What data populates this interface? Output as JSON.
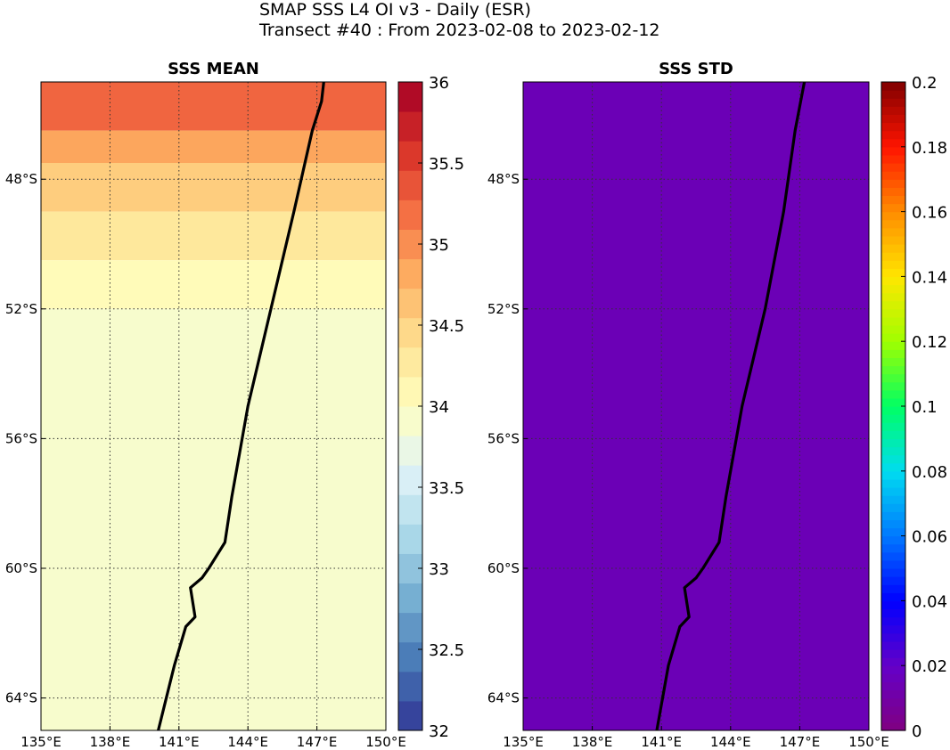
{
  "figure": {
    "title_line1": "SMAP SSS L4 OI v3 - Daily (ESR)",
    "title_line2": "Transect #40 : From 2023-02-08 to 2023-02-12"
  },
  "chart_data": [
    {
      "type": "heatmap",
      "title": "SSS MEAN",
      "xlim": [
        135,
        150
      ],
      "ylim": [
        -65.0,
        -45.0
      ],
      "x_ticks": [
        135,
        138,
        141,
        144,
        147,
        150
      ],
      "x_tick_labels": [
        "135°E",
        "138°E",
        "141°E",
        "144°E",
        "147°E",
        "150°E"
      ],
      "y_ticks": [
        -48,
        -52,
        -56,
        -60,
        -64
      ],
      "y_tick_labels": [
        "48°S",
        "52°S",
        "56°S",
        "60°S",
        "64°S"
      ],
      "grid": true,
      "colormap": "RdYlBu_r",
      "colorbar": {
        "range": [
          32,
          36
        ],
        "ticks": [
          32,
          32.5,
          33,
          33.5,
          34,
          34.5,
          35,
          35.5,
          36
        ],
        "tick_labels": [
          "32",
          "32.5",
          "33",
          "33.5",
          "34",
          "34.5",
          "35",
          "35.5",
          "36"
        ]
      },
      "salinity_zones": [
        {
          "lat_from": -45.0,
          "lat_to": -46.5,
          "value": 35.25
        },
        {
          "lat_from": -46.5,
          "lat_to": -47.5,
          "value": 34.85
        },
        {
          "lat_from": -47.5,
          "lat_to": -49.0,
          "value": 34.55
        },
        {
          "lat_from": -49.0,
          "lat_to": -50.5,
          "value": 34.3
        },
        {
          "lat_from": -50.5,
          "lat_to": -52.0,
          "value": 34.05
        },
        {
          "lat_from": -52.0,
          "lat_to": -65.0,
          "value": 33.9
        }
      ],
      "transect": {
        "lon": [
          140.1,
          140.8,
          141.3,
          141.7,
          141.5,
          142.0,
          142.3,
          143.0,
          143.3,
          144.0,
          145.0,
          146.0,
          146.8,
          147.2,
          147.3
        ],
        "lat": [
          -65.0,
          -63.0,
          -61.8,
          -61.5,
          -60.6,
          -60.3,
          -60.0,
          -59.2,
          -57.8,
          -55.0,
          -52.0,
          -49.0,
          -46.5,
          -45.6,
          -45.0
        ]
      }
    },
    {
      "type": "heatmap",
      "title": "SSS STD",
      "xlim": [
        135,
        150
      ],
      "ylim": [
        -65.0,
        -45.0
      ],
      "x_ticks": [
        135,
        138,
        141,
        144,
        147,
        150
      ],
      "x_tick_labels": [
        "135°E",
        "138°E",
        "141°E",
        "144°E",
        "147°E",
        "150°E"
      ],
      "y_ticks": [
        -48,
        -52,
        -56,
        -60,
        -64
      ],
      "y_tick_labels": [
        "48°S",
        "52°S",
        "56°S",
        "60°S",
        "64°S"
      ],
      "grid": true,
      "colormap": "jet",
      "colorbar": {
        "range": [
          0,
          0.2
        ],
        "ticks": [
          0,
          0.02,
          0.04,
          0.06,
          0.08,
          0.1,
          0.12,
          0.14,
          0.16,
          0.18,
          0.2
        ],
        "tick_labels": [
          "0",
          "0.02",
          "0.04",
          "0.06",
          "0.08",
          "0.1",
          "0.12",
          "0.14",
          "0.16",
          "0.18",
          "0.2"
        ]
      },
      "background_value": 0.015,
      "transect": {
        "lon": [
          140.8,
          141.3,
          141.8,
          142.2,
          142.0,
          142.5,
          142.8,
          143.5,
          143.8,
          144.5,
          145.5,
          146.3,
          146.8,
          147.2
        ],
        "lat": [
          -65.0,
          -63.0,
          -61.8,
          -61.5,
          -60.6,
          -60.3,
          -60.0,
          -59.2,
          -57.8,
          -55.0,
          -52.0,
          -49.0,
          -46.5,
          -45.0
        ]
      }
    }
  ]
}
